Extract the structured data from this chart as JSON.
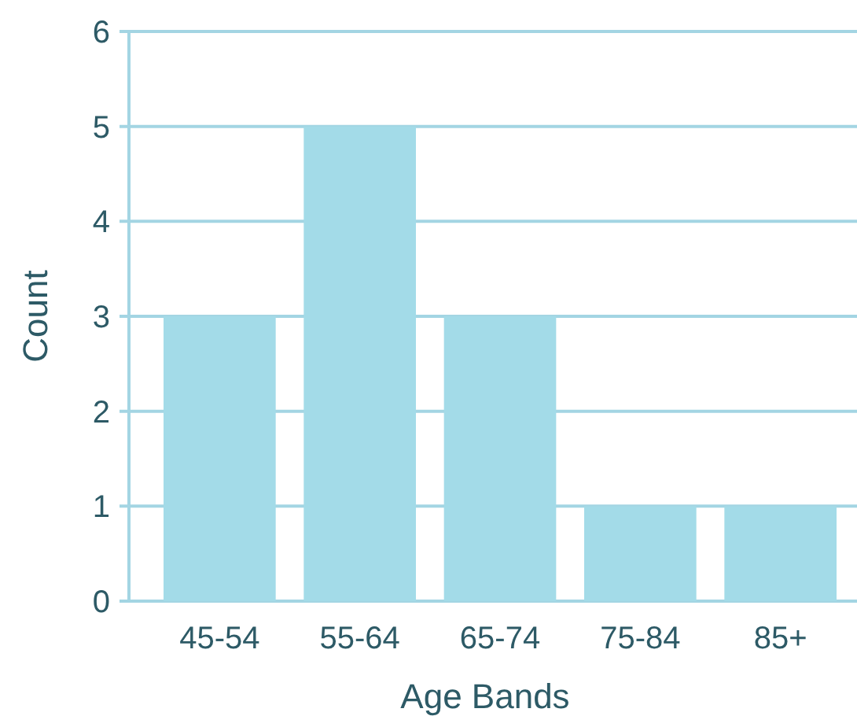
{
  "chart_data": {
    "type": "bar",
    "xlabel": "Age Bands",
    "ylabel": "Count",
    "categories": [
      "45-54",
      "55-64",
      "65-74",
      "75-84",
      "85+"
    ],
    "values": [
      3,
      5,
      3,
      1,
      1
    ],
    "color": "#a3dbe8",
    "ylim": [
      0,
      6
    ],
    "yticks": [
      0,
      1,
      2,
      3,
      4,
      5,
      6
    ],
    "grid": "y"
  }
}
